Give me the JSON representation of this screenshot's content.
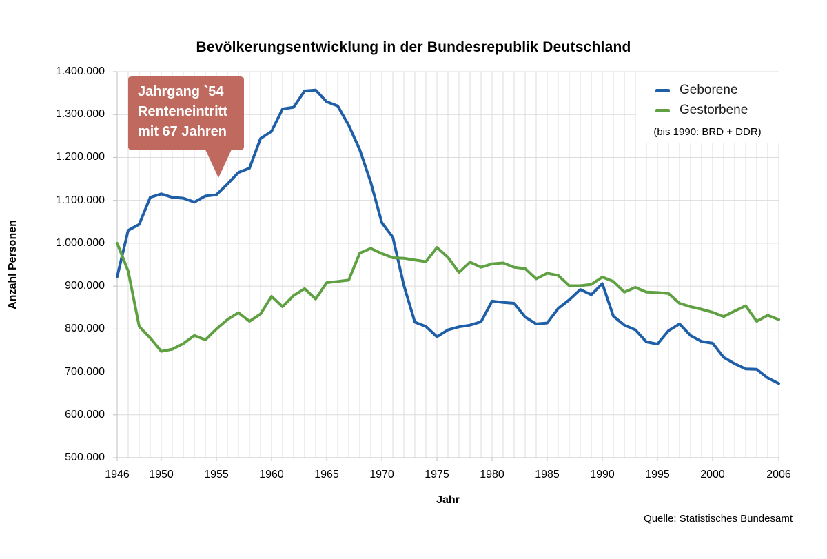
{
  "title": "Bevölkerungsentwicklung in der Bundesrepublik Deutschland",
  "source": "Quelle: Statistisches Bundesamt",
  "annotation": {
    "lines": [
      "Jahrgang `54",
      "Renteneintritt",
      "mit 67 Jahren"
    ],
    "bg_color": "#c06a5f",
    "text_color": "#ffffff",
    "points_to_year": 1955
  },
  "legend": {
    "items": [
      {
        "label": "Geborene",
        "color": "#1f5fa8"
      },
      {
        "label": "Gestorbene",
        "color": "#5fa043"
      }
    ],
    "note": "(bis 1990: BRD + DDR)",
    "position": "top-right"
  },
  "colors": {
    "grid": "#dcdcdc",
    "axis": "#c0c0c0",
    "births_line": "#1f5fa8",
    "deaths_line": "#5fa043"
  },
  "chart_data": {
    "type": "line",
    "title": "Bevölkerungsentwicklung in der Bundesrepublik Deutschland",
    "xlabel": "Jahr",
    "ylabel": "Anzahl Personen",
    "grid": true,
    "legend_position": "top-right",
    "ylim": [
      500000,
      1400000
    ],
    "y_tick_step": 100000,
    "y_tick_labels_top_to_bottom": [
      "1.400.000",
      "1.300.000",
      "1.200.000",
      "1.100.000",
      "1.000.000",
      "900.000",
      "800.000",
      "700.000",
      "600.000",
      "500.000"
    ],
    "x_tick_years": [
      1946,
      1950,
      1955,
      1960,
      1965,
      1970,
      1975,
      1980,
      1985,
      1990,
      1995,
      2000,
      2006
    ],
    "x": [
      1946,
      1947,
      1948,
      1949,
      1950,
      1951,
      1952,
      1953,
      1954,
      1955,
      1956,
      1957,
      1958,
      1959,
      1960,
      1961,
      1962,
      1963,
      1964,
      1965,
      1966,
      1967,
      1968,
      1969,
      1970,
      1971,
      1972,
      1973,
      1974,
      1975,
      1976,
      1977,
      1978,
      1979,
      1980,
      1981,
      1982,
      1983,
      1984,
      1985,
      1986,
      1987,
      1988,
      1989,
      1990,
      1991,
      1992,
      1993,
      1994,
      1995,
      1996,
      1997,
      1998,
      1999,
      2000,
      2001,
      2002,
      2003,
      2004,
      2005,
      2006
    ],
    "series": [
      {
        "name": "Geborene",
        "color": "#1f5fa8",
        "values": [
          922000,
          1030000,
          1044000,
          1107000,
          1115000,
          1107000,
          1105000,
          1096000,
          1110000,
          1113000,
          1138000,
          1165000,
          1175000,
          1244000,
          1261000,
          1313000,
          1317000,
          1355000,
          1357000,
          1330000,
          1320000,
          1275000,
          1218000,
          1142000,
          1048000,
          1014000,
          902000,
          816000,
          806000,
          782000,
          798000,
          805000,
          809000,
          817000,
          865000,
          862000,
          860000,
          828000,
          812000,
          814000,
          848000,
          868000,
          892000,
          880000,
          906000,
          830000,
          809000,
          798000,
          770000,
          765000,
          796000,
          812000,
          785000,
          771000,
          767000,
          734000,
          719000,
          707000,
          706000,
          686000,
          673000
        ]
      },
      {
        "name": "Gestorbene",
        "color": "#5fa043",
        "values": [
          1000000,
          935000,
          806000,
          779000,
          748000,
          753000,
          766000,
          785000,
          775000,
          800000,
          822000,
          838000,
          818000,
          835000,
          876000,
          852000,
          878000,
          894000,
          870000,
          908000,
          911000,
          914000,
          977000,
          988000,
          976000,
          966000,
          965000,
          961000,
          957000,
          990000,
          967000,
          932000,
          956000,
          944000,
          952000,
          954000,
          944000,
          941000,
          917000,
          930000,
          925000,
          901000,
          901000,
          904000,
          921000,
          911000,
          886000,
          897000,
          886000,
          885000,
          883000,
          860000,
          852000,
          846000,
          839000,
          829000,
          842000,
          854000,
          818000,
          832000,
          822000
        ]
      }
    ]
  }
}
